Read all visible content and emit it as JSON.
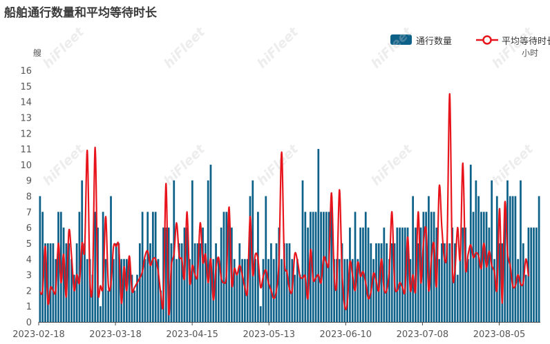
{
  "chart_data": {
    "type": "bar+line",
    "title": "船舶通行数量和平均等待时长",
    "y_left_unit": "艘",
    "y_right_unit": "小时",
    "ylim": [
      0,
      16
    ],
    "y_ticks": [
      "0",
      "1",
      "2",
      "3",
      "4",
      "5",
      "6",
      "7",
      "8",
      "9",
      "10",
      "11",
      "12",
      "13",
      "14",
      "15",
      "16"
    ],
    "x_ticks": [
      "2023-02-18",
      "2023-03-18",
      "2023-04-15",
      "2023-05-13",
      "2023-06-10",
      "2023-07-08",
      "2023-08-05"
    ],
    "x_start": "2023-02-18",
    "x_end": "2023-08-19",
    "grid": false,
    "legend_position": "top-right",
    "colors": {
      "bar": "#0d6189",
      "line": "#e8141b"
    },
    "series": [
      {
        "name": "通行数量",
        "type": "bar",
        "values": [
          8,
          7,
          5,
          5,
          5,
          5,
          4,
          7,
          7,
          6,
          5,
          5,
          4,
          3,
          5,
          7,
          9,
          5,
          4,
          4,
          3,
          7,
          6,
          1,
          7,
          4,
          2,
          8,
          4,
          5,
          5,
          4,
          4,
          4,
          4,
          3,
          2,
          3,
          5,
          7,
          4,
          7,
          5,
          7,
          7,
          4,
          2,
          6,
          6,
          6,
          5,
          9,
          4,
          5,
          5,
          6,
          6,
          4,
          9,
          5,
          5,
          5,
          6,
          5,
          9,
          10,
          4,
          5,
          4,
          6,
          7,
          7,
          7,
          6,
          4,
          3,
          5,
          4,
          4,
          4,
          8,
          9,
          4,
          7,
          1,
          4,
          8,
          4,
          5,
          4,
          5,
          6,
          4,
          5,
          5,
          5,
          4,
          3,
          4,
          3,
          9,
          7,
          6,
          7,
          7,
          7,
          11,
          7,
          7,
          7,
          7,
          8,
          4,
          4,
          4,
          5,
          4,
          4,
          6,
          4,
          7,
          4,
          6,
          6,
          7,
          6,
          5,
          4,
          5,
          5,
          5,
          6,
          5,
          4,
          5,
          5,
          6,
          6,
          6,
          6,
          6,
          4,
          8,
          6,
          5,
          6,
          7,
          7,
          8,
          7,
          7,
          6,
          4,
          5,
          5,
          5,
          5,
          6,
          5,
          3,
          4,
          6,
          6,
          4,
          10,
          7,
          9,
          8,
          7,
          7,
          7,
          6,
          9,
          4,
          8,
          5,
          5,
          7,
          9,
          8,
          8,
          8,
          4,
          9,
          5,
          3,
          6,
          6,
          6,
          6,
          8
        ]
      },
      {
        "name": "平均等待时长",
        "type": "line",
        "values": [
          1.9,
          2.0,
          4.8,
          1.2,
          2.2,
          2.0,
          2.0,
          5.0,
          2.5,
          4.3,
          1.6,
          5.8,
          4.2,
          2.0,
          3.0,
          2.5,
          5.0,
          4.6,
          10.9,
          2.8,
          2.5,
          11.1,
          2.2,
          2.3,
          2.3,
          6.7,
          2.4,
          2.4,
          4.8,
          4.8,
          4.8,
          1.2,
          3.5,
          2.0,
          4.2,
          2.0,
          2.2,
          2.5,
          2.8,
          3.2,
          4.2,
          4.5,
          3.6,
          4.0,
          4.0,
          3.2,
          1.8,
          1.3,
          8.8,
          0.6,
          3.6,
          4.3,
          6.3,
          4.2,
          4.0,
          2.8,
          7.0,
          2.5,
          3.6,
          3.0,
          3.0,
          6.3,
          3.8,
          4.3,
          2.5,
          4.0,
          1.4,
          3.4,
          4.1,
          2.8,
          2.5,
          3.0,
          7.3,
          2.4,
          3.4,
          3.0,
          3.6,
          3.0,
          2.2,
          2.0,
          6.7,
          3.0,
          4.3,
          4.0,
          2.2,
          2.9,
          3.3,
          2.5,
          2.0,
          1.5,
          2.0,
          3.9,
          10.8,
          4.0,
          3.2,
          2.1,
          2.0,
          4.3,
          3.9,
          2.9,
          2.8,
          2.9,
          1.5,
          4.6,
          2.7,
          2.8,
          3.0,
          2.5,
          4.1,
          3.8,
          3.8,
          8.2,
          3.0,
          2.5,
          8.4,
          3.2,
          1.0,
          1.2,
          3.8,
          3.0,
          2.0,
          3.8,
          2.9,
          3.2,
          2.5,
          1.5,
          1.9,
          3.1,
          2.6,
          2.0,
          4.0,
          2.1,
          2.0,
          3.3,
          7.0,
          2.5,
          2.0,
          2.5,
          2.2,
          2.0,
          5.4,
          2.0,
          3.0,
          2.0,
          7.0,
          2.5,
          5.0,
          5.9,
          2.0,
          4.0,
          5.0,
          2.3,
          8.6,
          6.0,
          4.0,
          5.0,
          14.5,
          3.5,
          3.3,
          6.0,
          4.0,
          10.1,
          3.5,
          4.3,
          4.9,
          4.1,
          4.4,
          4.2,
          3.4,
          5.0,
          3.5,
          4.5,
          3.6,
          3.2,
          2.1,
          7.2,
          1.2,
          7.6,
          4.4,
          3.6,
          2.3,
          2.3,
          3.0,
          2.4,
          2.5,
          4.0,
          2.9
        ]
      }
    ]
  },
  "watermark_text": "hiFleet"
}
